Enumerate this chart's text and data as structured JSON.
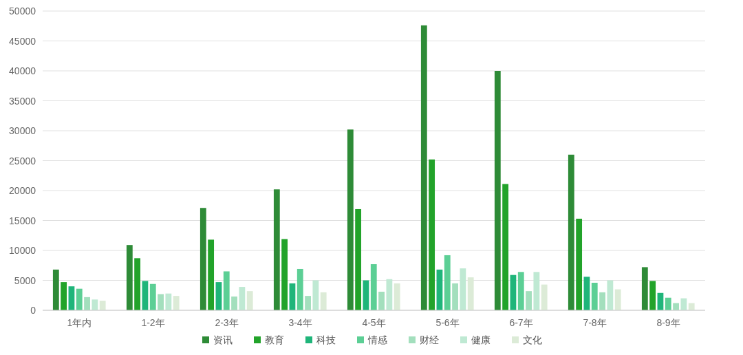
{
  "chart_data": {
    "type": "bar",
    "categories": [
      "1年内",
      "1-2年",
      "2-3年",
      "3-4年",
      "4-5年",
      "5-6年",
      "6-7年",
      "7-8年",
      "8-9年"
    ],
    "series": [
      {
        "name": "资讯",
        "color": "#2e8b37",
        "values": [
          6800,
          10900,
          17100,
          20200,
          30200,
          47600,
          40000,
          26000,
          7200
        ]
      },
      {
        "name": "教育",
        "color": "#22a32a",
        "values": [
          4700,
          8700,
          11800,
          11900,
          16900,
          25200,
          21100,
          15300,
          4900
        ]
      },
      {
        "name": "科技",
        "color": "#1fb57a",
        "values": [
          4000,
          4900,
          4700,
          4500,
          5000,
          6800,
          5900,
          5600,
          2900
        ]
      },
      {
        "name": "情感",
        "color": "#5ccf95",
        "values": [
          3600,
          4400,
          6500,
          6900,
          7700,
          9200,
          6400,
          4600,
          2100
        ]
      },
      {
        "name": "财经",
        "color": "#a3dfbd",
        "values": [
          2200,
          2700,
          2300,
          2400,
          3100,
          4500,
          3200,
          3000,
          1200
        ]
      },
      {
        "name": "健康",
        "color": "#bfe9d3",
        "values": [
          1800,
          2800,
          3900,
          5000,
          5200,
          7000,
          6400,
          5000,
          2000
        ]
      },
      {
        "name": "文化",
        "color": "#dcebd7",
        "values": [
          1600,
          2400,
          3200,
          3000,
          4500,
          5500,
          4300,
          3500,
          1200
        ]
      }
    ],
    "ylim": [
      0,
      50000
    ],
    "yticks": [
      0,
      5000,
      10000,
      15000,
      20000,
      25000,
      30000,
      35000,
      40000,
      45000,
      50000
    ],
    "grid": "y",
    "legend": "bottom"
  }
}
